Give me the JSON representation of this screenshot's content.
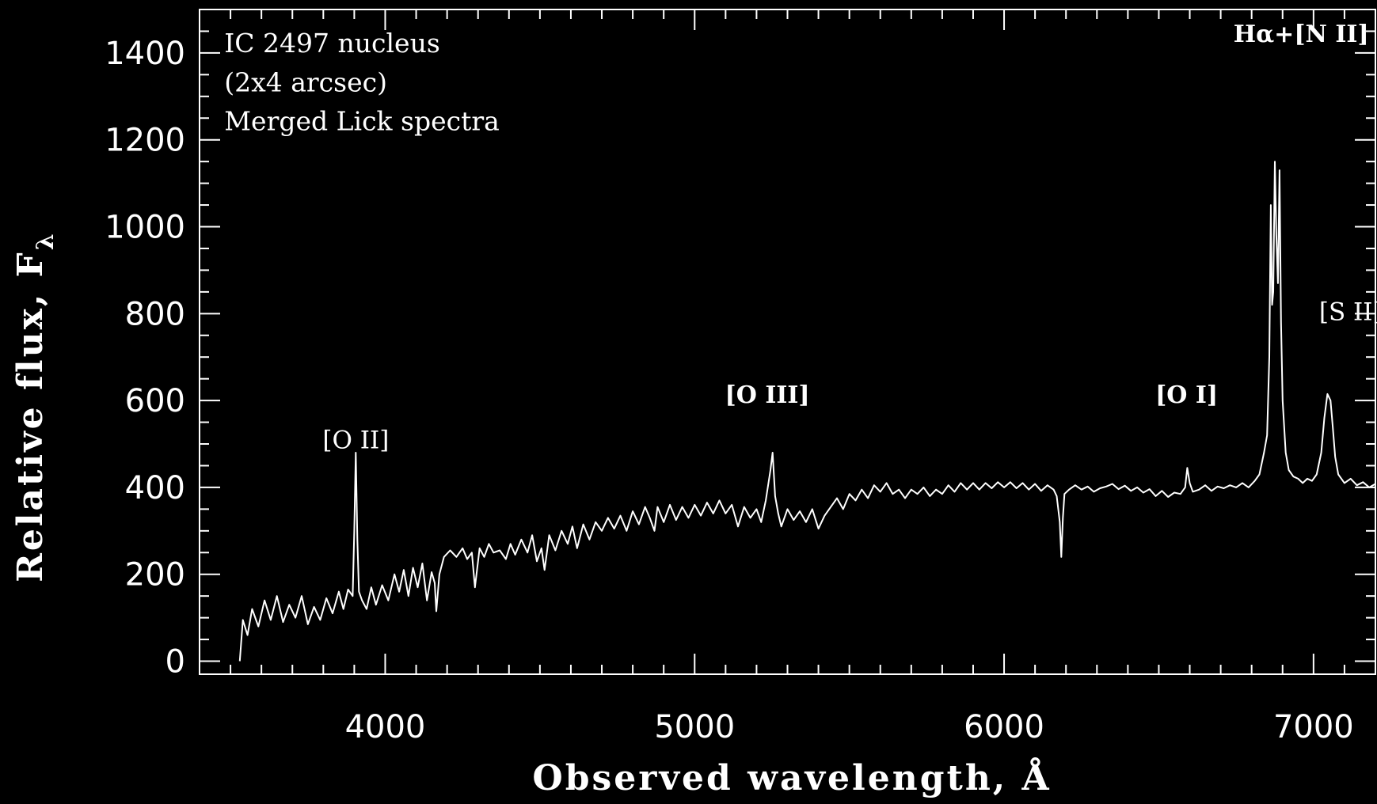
{
  "chart_data": {
    "type": "line",
    "title": "",
    "xlabel": "Observed wavelength, Å",
    "ylabel_main": "Relative flux, F",
    "ylabel_sub": "λ",
    "xlim": [
      3400,
      7200
    ],
    "ylim": [
      -30,
      1500
    ],
    "x_ticks": [
      {
        "value": 4000,
        "label": "4000"
      },
      {
        "value": 5000,
        "label": "5000"
      },
      {
        "value": 6000,
        "label": "6000"
      },
      {
        "value": 7000,
        "label": "7000"
      }
    ],
    "y_ticks": [
      {
        "value": 0,
        "label": "0"
      },
      {
        "value": 200,
        "label": "200"
      },
      {
        "value": 400,
        "label": "400"
      },
      {
        "value": 600,
        "label": "600"
      },
      {
        "value": 800,
        "label": "800"
      },
      {
        "value": 1000,
        "label": "1000"
      },
      {
        "value": 1200,
        "label": "1200"
      },
      {
        "value": 1400,
        "label": "1400"
      }
    ],
    "x_minor_step": 100,
    "y_minor_step": 50,
    "grid": false,
    "annotations": [
      {
        "text": "IC 2497 nucleus",
        "x": 3480,
        "y": 1420
      },
      {
        "text": "(2x4 arcsec)",
        "x": 3480,
        "y": 1330
      },
      {
        "text": "Merged Lick spectra",
        "x": 3480,
        "y": 1240
      }
    ],
    "line_labels": [
      {
        "text": "[O II]",
        "x": 3905,
        "y": 490,
        "bold": false
      },
      {
        "text": "[O III]",
        "x": 5235,
        "y": 595,
        "bold": true
      },
      {
        "text": "[O I]",
        "x": 6590,
        "y": 595,
        "bold": true
      },
      {
        "text": "Hα+[N II]",
        "x": 6960,
        "y": 1425,
        "bold": true
      },
      {
        "text": "[S II]",
        "x": 7120,
        "y": 785,
        "bold": false
      }
    ],
    "series": [
      {
        "color": "#ffffff",
        "points": [
          [
            3530,
            0
          ],
          [
            3540,
            95
          ],
          [
            3555,
            60
          ],
          [
            3570,
            120
          ],
          [
            3590,
            80
          ],
          [
            3610,
            140
          ],
          [
            3630,
            95
          ],
          [
            3650,
            150
          ],
          [
            3670,
            90
          ],
          [
            3690,
            130
          ],
          [
            3710,
            100
          ],
          [
            3730,
            150
          ],
          [
            3750,
            85
          ],
          [
            3770,
            125
          ],
          [
            3790,
            95
          ],
          [
            3810,
            145
          ],
          [
            3830,
            110
          ],
          [
            3850,
            160
          ],
          [
            3865,
            120
          ],
          [
            3880,
            165
          ],
          [
            3895,
            150
          ],
          [
            3900,
            300
          ],
          [
            3905,
            480
          ],
          [
            3910,
            280
          ],
          [
            3915,
            160
          ],
          [
            3925,
            140
          ],
          [
            3940,
            120
          ],
          [
            3955,
            170
          ],
          [
            3970,
            130
          ],
          [
            3990,
            175
          ],
          [
            4010,
            140
          ],
          [
            4030,
            200
          ],
          [
            4045,
            160
          ],
          [
            4060,
            210
          ],
          [
            4075,
            150
          ],
          [
            4090,
            215
          ],
          [
            4105,
            170
          ],
          [
            4120,
            225
          ],
          [
            4135,
            140
          ],
          [
            4150,
            205
          ],
          [
            4160,
            180
          ],
          [
            4165,
            115
          ],
          [
            4175,
            200
          ],
          [
            4190,
            240
          ],
          [
            4210,
            255
          ],
          [
            4230,
            240
          ],
          [
            4250,
            260
          ],
          [
            4265,
            235
          ],
          [
            4280,
            250
          ],
          [
            4290,
            170
          ],
          [
            4305,
            260
          ],
          [
            4320,
            240
          ],
          [
            4335,
            270
          ],
          [
            4350,
            250
          ],
          [
            4370,
            255
          ],
          [
            4390,
            235
          ],
          [
            4405,
            270
          ],
          [
            4420,
            245
          ],
          [
            4440,
            280
          ],
          [
            4460,
            250
          ],
          [
            4475,
            290
          ],
          [
            4490,
            230
          ],
          [
            4505,
            260
          ],
          [
            4515,
            210
          ],
          [
            4530,
            290
          ],
          [
            4550,
            255
          ],
          [
            4570,
            300
          ],
          [
            4590,
            270
          ],
          [
            4605,
            310
          ],
          [
            4620,
            260
          ],
          [
            4640,
            315
          ],
          [
            4660,
            280
          ],
          [
            4680,
            320
          ],
          [
            4700,
            300
          ],
          [
            4720,
            330
          ],
          [
            4740,
            305
          ],
          [
            4760,
            335
          ],
          [
            4780,
            300
          ],
          [
            4800,
            345
          ],
          [
            4820,
            315
          ],
          [
            4840,
            355
          ],
          [
            4855,
            330
          ],
          [
            4870,
            300
          ],
          [
            4880,
            355
          ],
          [
            4900,
            320
          ],
          [
            4920,
            360
          ],
          [
            4940,
            325
          ],
          [
            4960,
            355
          ],
          [
            4980,
            330
          ],
          [
            5000,
            360
          ],
          [
            5020,
            335
          ],
          [
            5040,
            365
          ],
          [
            5060,
            340
          ],
          [
            5080,
            370
          ],
          [
            5100,
            340
          ],
          [
            5120,
            360
          ],
          [
            5140,
            310
          ],
          [
            5160,
            355
          ],
          [
            5180,
            330
          ],
          [
            5200,
            350
          ],
          [
            5215,
            320
          ],
          [
            5230,
            370
          ],
          [
            5245,
            440
          ],
          [
            5252,
            480
          ],
          [
            5260,
            380
          ],
          [
            5270,
            340
          ],
          [
            5280,
            310
          ],
          [
            5300,
            350
          ],
          [
            5320,
            325
          ],
          [
            5340,
            345
          ],
          [
            5360,
            320
          ],
          [
            5380,
            350
          ],
          [
            5400,
            305
          ],
          [
            5420,
            335
          ],
          [
            5440,
            355
          ],
          [
            5460,
            375
          ],
          [
            5480,
            350
          ],
          [
            5500,
            385
          ],
          [
            5520,
            370
          ],
          [
            5540,
            395
          ],
          [
            5560,
            375
          ],
          [
            5580,
            405
          ],
          [
            5600,
            390
          ],
          [
            5620,
            410
          ],
          [
            5640,
            385
          ],
          [
            5660,
            395
          ],
          [
            5680,
            375
          ],
          [
            5700,
            395
          ],
          [
            5720,
            385
          ],
          [
            5740,
            400
          ],
          [
            5760,
            380
          ],
          [
            5780,
            395
          ],
          [
            5800,
            385
          ],
          [
            5820,
            405
          ],
          [
            5840,
            390
          ],
          [
            5860,
            410
          ],
          [
            5880,
            395
          ],
          [
            5900,
            410
          ],
          [
            5920,
            395
          ],
          [
            5940,
            410
          ],
          [
            5960,
            398
          ],
          [
            5980,
            412
          ],
          [
            6000,
            400
          ],
          [
            6020,
            412
          ],
          [
            6040,
            398
          ],
          [
            6060,
            410
          ],
          [
            6080,
            395
          ],
          [
            6100,
            408
          ],
          [
            6120,
            392
          ],
          [
            6140,
            405
          ],
          [
            6160,
            395
          ],
          [
            6170,
            380
          ],
          [
            6180,
            320
          ],
          [
            6185,
            240
          ],
          [
            6190,
            330
          ],
          [
            6195,
            385
          ],
          [
            6210,
            395
          ],
          [
            6230,
            405
          ],
          [
            6250,
            395
          ],
          [
            6270,
            402
          ],
          [
            6290,
            390
          ],
          [
            6310,
            398
          ],
          [
            6330,
            402
          ],
          [
            6350,
            408
          ],
          [
            6370,
            396
          ],
          [
            6390,
            404
          ],
          [
            6410,
            392
          ],
          [
            6430,
            400
          ],
          [
            6450,
            388
          ],
          [
            6470,
            396
          ],
          [
            6490,
            380
          ],
          [
            6510,
            392
          ],
          [
            6530,
            378
          ],
          [
            6550,
            388
          ],
          [
            6570,
            385
          ],
          [
            6585,
            400
          ],
          [
            6592,
            445
          ],
          [
            6600,
            410
          ],
          [
            6610,
            390
          ],
          [
            6630,
            395
          ],
          [
            6650,
            405
          ],
          [
            6670,
            392
          ],
          [
            6690,
            402
          ],
          [
            6710,
            398
          ],
          [
            6730,
            405
          ],
          [
            6750,
            400
          ],
          [
            6770,
            410
          ],
          [
            6790,
            400
          ],
          [
            6810,
            415
          ],
          [
            6825,
            430
          ],
          [
            6840,
            480
          ],
          [
            6850,
            520
          ],
          [
            6857,
            700
          ],
          [
            6862,
            1050
          ],
          [
            6866,
            820
          ],
          [
            6870,
            850
          ],
          [
            6875,
            1150
          ],
          [
            6880,
            980
          ],
          [
            6885,
            870
          ],
          [
            6890,
            1130
          ],
          [
            6895,
            780
          ],
          [
            6900,
            600
          ],
          [
            6910,
            480
          ],
          [
            6920,
            440
          ],
          [
            6935,
            425
          ],
          [
            6950,
            420
          ],
          [
            6965,
            410
          ],
          [
            6980,
            420
          ],
          [
            6995,
            415
          ],
          [
            7010,
            430
          ],
          [
            7025,
            480
          ],
          [
            7035,
            560
          ],
          [
            7045,
            615
          ],
          [
            7055,
            600
          ],
          [
            7062,
            540
          ],
          [
            7070,
            470
          ],
          [
            7080,
            430
          ],
          [
            7100,
            410
          ],
          [
            7120,
            420
          ],
          [
            7140,
            405
          ],
          [
            7160,
            412
          ],
          [
            7180,
            400
          ],
          [
            7200,
            408
          ]
        ]
      }
    ]
  }
}
